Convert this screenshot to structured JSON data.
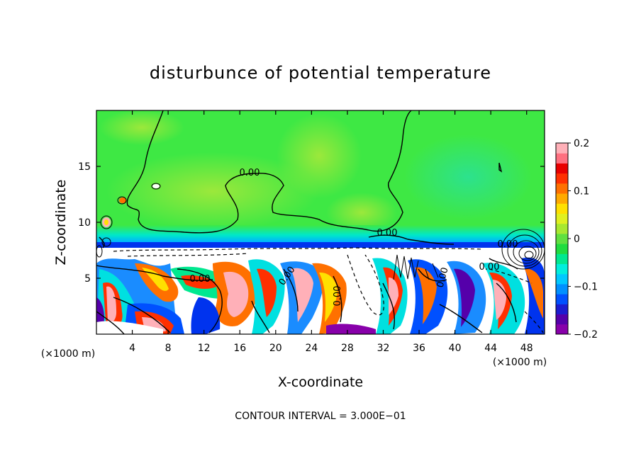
{
  "chart_data": {
    "type": "heatmap",
    "title": "disturbunce of potential temperature",
    "xlabel": "X-coordinate",
    "ylabel": "Z-coordinate",
    "x_unit_label": "(×1000 m)",
    "xlim": [
      0,
      50
    ],
    "ylim": [
      0,
      20
    ],
    "x_ticks": [
      4,
      8,
      12,
      16,
      20,
      24,
      28,
      32,
      36,
      40,
      44,
      48
    ],
    "y_ticks": [
      5,
      10,
      15
    ],
    "colorbar": {
      "range": [
        -0.2,
        0.2
      ],
      "tick_values": [
        0.2,
        0.1,
        0,
        -0.1,
        -0.2
      ],
      "tick_labels": [
        "0.2",
        "0.1",
        "0",
        "−0.1",
        "−0.2"
      ],
      "colors": [
        "#8800aa",
        "#5500aa",
        "#1c1cd0",
        "#0050ff",
        "#0090ff",
        "#00c8ff",
        "#00eedd",
        "#00e890",
        "#20dc40",
        "#60e040",
        "#a8e830",
        "#e0f020",
        "#ffe000",
        "#ffaa00",
        "#ff7000",
        "#ff3000",
        "#e80000",
        "#ff7080",
        "#ffb0b8"
      ]
    },
    "contour_interval_text": "CONTOUR INTERVAL = 3.000E−01",
    "contour_labels": [
      "0.00",
      "0.00",
      "0.00",
      "0.00",
      "0.00",
      "0.00",
      "0.00",
      "0.00",
      "0.00"
    ],
    "colors": {
      "background_field": "#3ee844",
      "upper_light": "#8ce840",
      "inversion_band": "#1aa8ff",
      "lower_layer_bg": "#ffffff"
    }
  }
}
